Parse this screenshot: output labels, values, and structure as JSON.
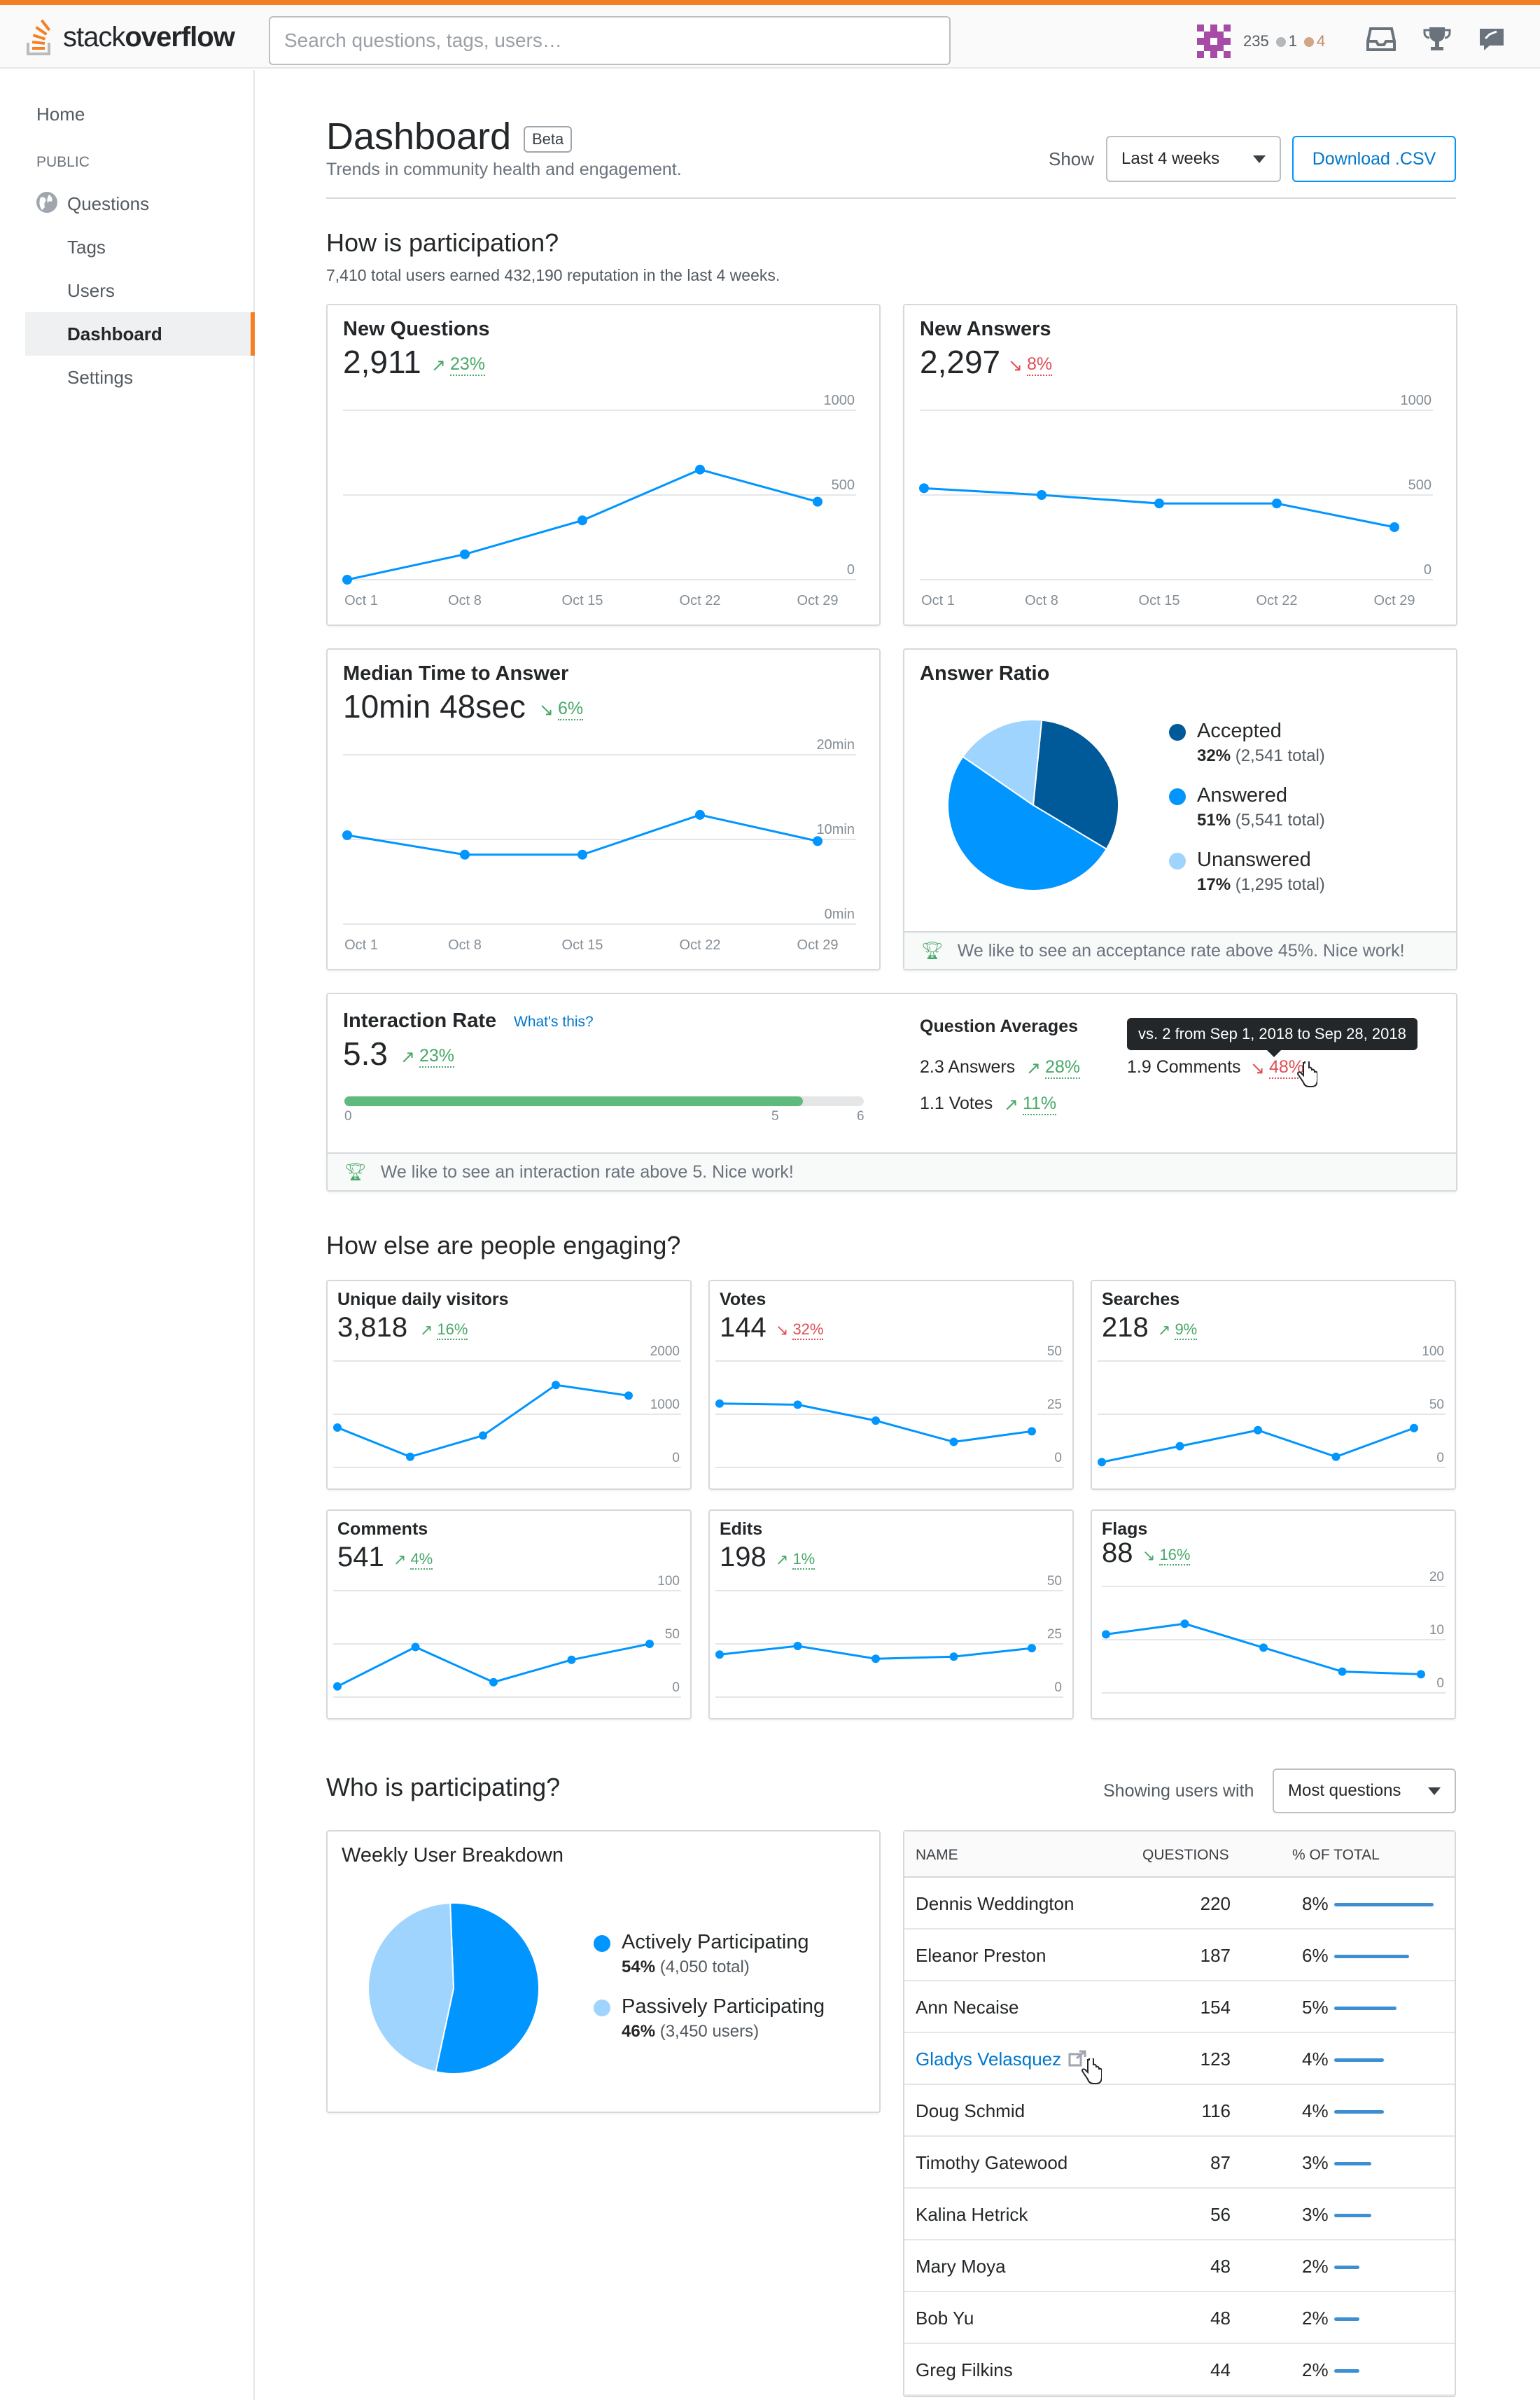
{
  "header": {
    "logo_text_light": "stack",
    "logo_text_bold": "overflow",
    "search_placeholder": "Search questions, tags, users…",
    "reputation": "235",
    "silver_badges": "1",
    "bronze_badges": "4",
    "colors": {
      "accent": "#f48024",
      "silver": "#b4b8bc",
      "bronze": "#d1a684"
    }
  },
  "sidebar": {
    "home": "Home",
    "public": "PUBLIC",
    "questions": "Questions",
    "tags": "Tags",
    "users": "Users",
    "dashboard": "Dashboard",
    "settings": "Settings"
  },
  "page": {
    "title": "Dashboard",
    "beta": "Beta",
    "subtitle": "Trends in community health and engagement.",
    "show_label": "Show",
    "period": "Last 4 weeks",
    "download": "Download .CSV"
  },
  "participation": {
    "heading": "How is participation?",
    "summary": "7,410 total users earned 432,190 reputation in the last 4 weeks."
  },
  "cards": {
    "new_questions": {
      "title": "New Questions",
      "value": "2,911",
      "trend": "23%",
      "dir": "up"
    },
    "new_answers": {
      "title": "New Answers",
      "value": "2,297",
      "trend": "8%",
      "dir": "down"
    },
    "median_time": {
      "title": "Median Time to Answer",
      "value": "10min 48sec",
      "trend": "6%",
      "dir": "down-good"
    },
    "answer_ratio": {
      "title": "Answer Ratio",
      "accepted_label": "Accepted",
      "accepted_pct": "32%",
      "accepted_total": "(2,541 total)",
      "answered_label": "Answered",
      "answered_pct": "51%",
      "answered_total": "(5,541 total)",
      "unanswered_label": "Unanswered",
      "unanswered_pct": "17%",
      "unanswered_total": "(1,295 total)",
      "footer": "We like to see an acceptance rate above 45%. Nice work!"
    },
    "interaction": {
      "title": "Interaction Rate",
      "whats_this": "What's this?",
      "value": "5.3",
      "trend": "23%",
      "progress": 0.883,
      "tick0": "0",
      "tick5": "5",
      "tick6": "6",
      "footer": "We like to see an interaction rate above 5. Nice work!",
      "averages_title": "Question Averages",
      "answers": "2.3 Answers",
      "answers_trend": "28%",
      "votes": "1.1 Votes",
      "votes_trend": "11%",
      "comments": "1.9 Comments",
      "comments_trend": "48%",
      "tooltip": "vs. 2 from Sep 1, 2018 to Sep 28, 2018"
    }
  },
  "engaging": {
    "heading": "How else are people engaging?",
    "visitors": {
      "title": "Unique daily visitors",
      "value": "3,818",
      "trend": "16%"
    },
    "votes": {
      "title": "Votes",
      "value": "144",
      "trend": "32%"
    },
    "searches": {
      "title": "Searches",
      "value": "218",
      "trend": "9%"
    },
    "comments": {
      "title": "Comments",
      "value": "541",
      "trend": "4%"
    },
    "edits": {
      "title": "Edits",
      "value": "198",
      "trend": "1%"
    },
    "flags": {
      "title": "Flags",
      "value": "88",
      "trend": "16%"
    }
  },
  "who": {
    "heading": "Who is participating?",
    "showing_label": "Showing users with",
    "sort": "Most questions",
    "breakdown_title": "Weekly User Breakdown",
    "active_label": "Actively Participating",
    "active_pct": "54%",
    "active_total": "(4,050 total)",
    "passive_label": "Passively Participating",
    "passive_pct": "46%",
    "passive_total": "(3,450 users)",
    "table": {
      "col_name": "NAME",
      "col_questions": "QUESTIONS",
      "col_pct": "% OF TOTAL",
      "rows": [
        {
          "name": "Dennis Weddington",
          "questions": "220",
          "pct": "8%"
        },
        {
          "name": "Eleanor Preston",
          "questions": "187",
          "pct": "6%"
        },
        {
          "name": "Ann Necaise",
          "questions": "154",
          "pct": "5%"
        },
        {
          "name": "Gladys Velasquez",
          "questions": "123",
          "pct": "4%"
        },
        {
          "name": "Doug Schmid",
          "questions": "116",
          "pct": "4%"
        },
        {
          "name": "Timothy Gatewood",
          "questions": "87",
          "pct": "3%"
        },
        {
          "name": "Kalina Hetrick",
          "questions": "56",
          "pct": "3%"
        },
        {
          "name": "Mary Moya",
          "questions": "48",
          "pct": "2%"
        },
        {
          "name": "Bob Yu",
          "questions": "48",
          "pct": "2%"
        },
        {
          "name": "Greg Filkins",
          "questions": "44",
          "pct": "2%"
        }
      ]
    }
  },
  "chart_data": [
    {
      "type": "line",
      "name_ref": "New Questions",
      "categories": [
        "Oct 1",
        "Oct 8",
        "Oct 15",
        "Oct 22",
        "Oct 29"
      ],
      "values": [
        0,
        150,
        350,
        650,
        460
      ],
      "ylim": [
        0,
        1000
      ],
      "yticks": [
        "0",
        "500",
        "1000"
      ]
    },
    {
      "type": "line",
      "name_ref": "New Answers",
      "categories": [
        "Oct 1",
        "Oct 8",
        "Oct 15",
        "Oct 22",
        "Oct 29"
      ],
      "values": [
        540,
        500,
        450,
        450,
        310
      ],
      "ylim": [
        0,
        1000
      ],
      "yticks": [
        "0",
        "500",
        "1000"
      ]
    },
    {
      "type": "line",
      "name_ref": "Median Time to Answer",
      "categories": [
        "Oct 1",
        "Oct 8",
        "Oct 15",
        "Oct 22",
        "Oct 29"
      ],
      "values": [
        10.5,
        8.2,
        8.2,
        12.9,
        9.8
      ],
      "ylim": [
        0,
        20
      ],
      "yticks": [
        "0min",
        "10min",
        "20min"
      ]
    },
    {
      "type": "pie",
      "name_ref": "Answer Ratio",
      "labels": [
        "Accepted",
        "Answered",
        "Unanswered"
      ],
      "values": [
        32,
        51,
        17
      ],
      "colors": [
        "#005999",
        "#0095ff",
        "#9fd4ff"
      ]
    },
    {
      "type": "line",
      "name_ref": "Unique daily visitors",
      "values": [
        750,
        200,
        600,
        1550,
        1350
      ],
      "ylim": [
        0,
        2000
      ],
      "yticks": [
        "0",
        "1000",
        "2000"
      ]
    },
    {
      "type": "line",
      "name_ref": "Votes",
      "values": [
        30,
        29.5,
        22,
        12,
        17
      ],
      "ylim": [
        0,
        50
      ],
      "yticks": [
        "0",
        "25",
        "50"
      ]
    },
    {
      "type": "line",
      "name_ref": "Searches",
      "values": [
        5,
        20,
        35,
        10,
        37
      ],
      "ylim": [
        0,
        100
      ],
      "yticks": [
        "0",
        "50",
        "100"
      ]
    },
    {
      "type": "line",
      "name_ref": "Comments",
      "values": [
        10,
        47,
        14,
        35,
        50
      ],
      "ylim": [
        0,
        100
      ],
      "yticks": [
        "0",
        "50",
        "100"
      ]
    },
    {
      "type": "line",
      "name_ref": "Edits",
      "values": [
        20,
        24,
        18,
        19,
        23
      ],
      "ylim": [
        0,
        50
      ],
      "yticks": [
        "0",
        "25",
        "50"
      ]
    },
    {
      "type": "line",
      "name_ref": "Flags",
      "values": [
        11,
        13,
        8.5,
        4,
        3.5
      ],
      "ylim": [
        0,
        20
      ],
      "yticks": [
        "0",
        "10",
        "20"
      ]
    },
    {
      "type": "pie",
      "name_ref": "Weekly User Breakdown",
      "labels": [
        "Actively Participating",
        "Passively Participating"
      ],
      "values": [
        54,
        46
      ],
      "colors": [
        "#0095ff",
        "#9fd4ff"
      ]
    }
  ]
}
